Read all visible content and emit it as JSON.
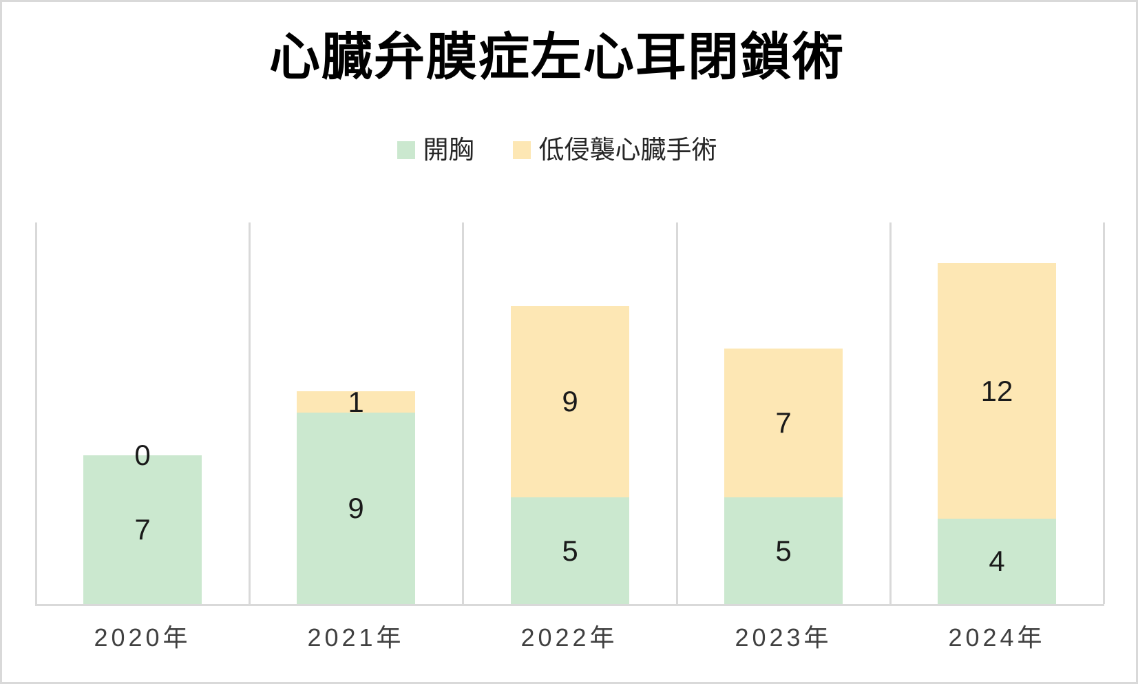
{
  "chart_data": {
    "type": "bar",
    "stacked": true,
    "title": "心臓弁膜症左心耳閉鎖術",
    "categories": [
      "2020年",
      "2021年",
      "2022年",
      "2023年",
      "2024年"
    ],
    "series": [
      {
        "name": "開胸",
        "key": "open-chest",
        "color": "#cbe8cf",
        "values": [
          7,
          9,
          5,
          5,
          4
        ]
      },
      {
        "name": "低侵襲心臓手術",
        "key": "minimally-invasive",
        "color": "#fde7b4",
        "values": [
          0,
          1,
          9,
          7,
          12
        ]
      }
    ],
    "data_labels_shown": true,
    "ylim": [
      0,
      18
    ],
    "xlabel": "",
    "ylabel": "",
    "legend_position": "top",
    "grid": "vertical-category-separators-only",
    "gridline_color": "#d9d9d9",
    "axis_line_color": "#d9d9d9",
    "tick_label_color": "#404040",
    "data_label_color": "#1a1a1a",
    "title_color": "#000000",
    "background_color": "#ffffff"
  }
}
